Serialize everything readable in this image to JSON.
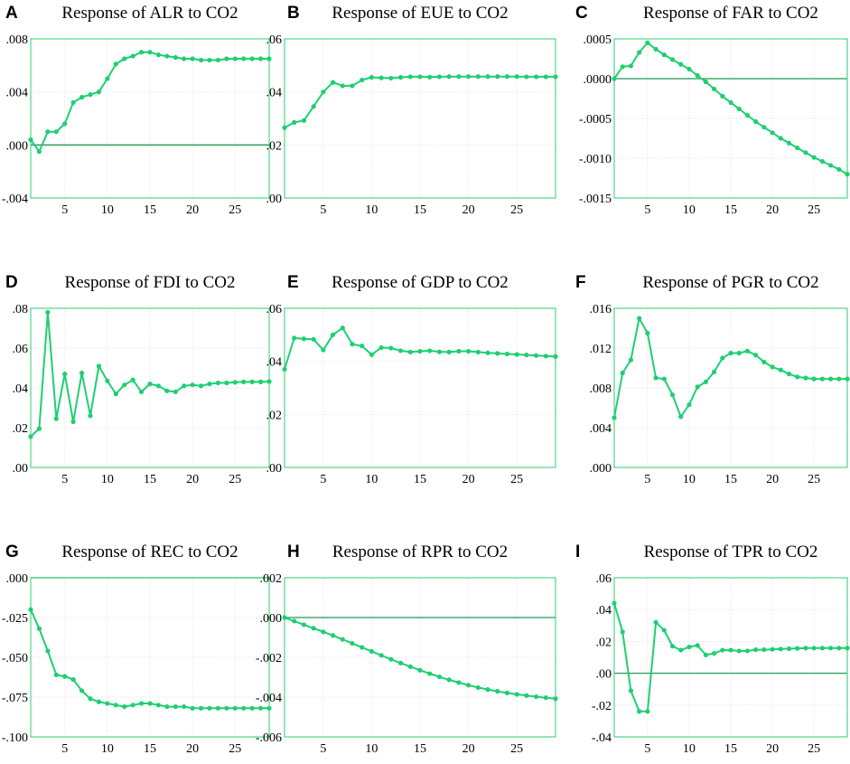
{
  "colors": {
    "series": "#1ecf72",
    "frame": "#2ecc71",
    "zero_line": "#229954",
    "text": "#000000"
  },
  "chart_data": [
    {
      "type": "line",
      "letter": "A",
      "title": "Response of ALR to CO2",
      "xlim": [
        1,
        29
      ],
      "xticks": [
        5,
        10,
        15,
        20,
        25
      ],
      "ylim": [
        -0.004,
        0.008
      ],
      "yticks": [
        0.008,
        0.004,
        0.0,
        -0.004
      ],
      "ytick_labels": [
        ".008",
        ".004",
        ".000",
        "-.004"
      ],
      "zero_line": true,
      "values": [
        0.0004,
        -0.0005,
        0.001,
        0.001,
        0.0016,
        0.0032,
        0.0036,
        0.0038,
        0.004,
        0.005,
        0.0061,
        0.0065,
        0.0067,
        0.007,
        0.007,
        0.0068,
        0.0067,
        0.0066,
        0.0065,
        0.0065,
        0.0064,
        0.0064,
        0.0064,
        0.0065,
        0.0065,
        0.0065,
        0.0065,
        0.0065,
        0.0065
      ]
    },
    {
      "type": "line",
      "letter": "B",
      "title": "Response of EUE to CO2",
      "xlim": [
        1,
        29
      ],
      "xticks": [
        5,
        10,
        15,
        20,
        25
      ],
      "ylim": [
        0.0,
        0.06
      ],
      "yticks": [
        0.06,
        0.04,
        0.02,
        0.0
      ],
      "ytick_labels": [
        ".06",
        ".04",
        ".02",
        ".00"
      ],
      "zero_line": false,
      "values": [
        0.0265,
        0.0285,
        0.0292,
        0.0345,
        0.04,
        0.0436,
        0.0423,
        0.0423,
        0.0445,
        0.0455,
        0.0453,
        0.0452,
        0.0455,
        0.0457,
        0.0457,
        0.0456,
        0.0457,
        0.0458,
        0.0458,
        0.0458,
        0.0458,
        0.0458,
        0.0458,
        0.0458,
        0.0458,
        0.0457,
        0.0457,
        0.0457,
        0.0457
      ]
    },
    {
      "type": "line",
      "letter": "C",
      "title": "Response of FAR to CO2",
      "xlim": [
        1,
        29
      ],
      "xticks": [
        5,
        10,
        15,
        20,
        25
      ],
      "ylim": [
        -0.0015,
        0.0005
      ],
      "yticks": [
        0.0005,
        0.0,
        -0.0005,
        -0.001,
        -0.0015
      ],
      "ytick_labels": [
        ".0005",
        ".0000",
        "-.0005",
        "-.0010",
        "-.0015"
      ],
      "zero_line": true,
      "values": [
        0.0,
        0.00015,
        0.00016,
        0.00033,
        0.00045,
        0.00037,
        0.0003,
        0.00024,
        0.00018,
        0.00012,
        4e-05,
        -4e-05,
        -0.00013,
        -0.00022,
        -0.0003,
        -0.00038,
        -0.00046,
        -0.00054,
        -0.00061,
        -0.00068,
        -0.00075,
        -0.00081,
        -0.00087,
        -0.00093,
        -0.00099,
        -0.00104,
        -0.00109,
        -0.00114,
        -0.0012
      ]
    },
    {
      "type": "line",
      "letter": "D",
      "title": "Response of FDI to CO2",
      "xlim": [
        1,
        29
      ],
      "xticks": [
        5,
        10,
        15,
        20,
        25
      ],
      "ylim": [
        0.0,
        0.08
      ],
      "yticks": [
        0.08,
        0.06,
        0.04,
        0.02,
        0.0
      ],
      "ytick_labels": [
        ".08",
        ".06",
        ".04",
        ".02",
        ".00"
      ],
      "zero_line": false,
      "values": [
        0.0155,
        0.0195,
        0.078,
        0.0245,
        0.047,
        0.023,
        0.0475,
        0.026,
        0.051,
        0.0435,
        0.037,
        0.0415,
        0.044,
        0.038,
        0.042,
        0.041,
        0.0385,
        0.038,
        0.041,
        0.0415,
        0.041,
        0.042,
        0.0425,
        0.0425,
        0.0428,
        0.043,
        0.043,
        0.043,
        0.0432
      ]
    },
    {
      "type": "line",
      "letter": "E",
      "title": "Response of GDP to CO2",
      "xlim": [
        1,
        29
      ],
      "xticks": [
        5,
        10,
        15,
        20,
        25
      ],
      "ylim": [
        0.0,
        0.06
      ],
      "yticks": [
        0.06,
        0.04,
        0.02,
        0.0
      ],
      "ytick_labels": [
        ".06",
        ".04",
        ".02",
        ".00"
      ],
      "zero_line": false,
      "values": [
        0.037,
        0.0488,
        0.0485,
        0.0483,
        0.0443,
        0.05,
        0.0526,
        0.0465,
        0.0458,
        0.0425,
        0.0452,
        0.045,
        0.044,
        0.0435,
        0.0438,
        0.044,
        0.0436,
        0.0435,
        0.0438,
        0.0438,
        0.0435,
        0.0432,
        0.043,
        0.0428,
        0.0426,
        0.0424,
        0.0422,
        0.042,
        0.0418
      ]
    },
    {
      "type": "line",
      "letter": "F",
      "title": "Response of PGR to CO2",
      "xlim": [
        1,
        29
      ],
      "xticks": [
        5,
        10,
        15,
        20,
        25
      ],
      "ylim": [
        0.0,
        0.016
      ],
      "yticks": [
        0.016,
        0.012,
        0.008,
        0.004,
        0.0
      ],
      "ytick_labels": [
        ".016",
        ".012",
        ".008",
        ".004",
        ".000"
      ],
      "zero_line": false,
      "values": [
        0.005,
        0.0095,
        0.0108,
        0.015,
        0.0135,
        0.009,
        0.0089,
        0.0073,
        0.0051,
        0.0063,
        0.0081,
        0.0086,
        0.0096,
        0.011,
        0.0115,
        0.0115,
        0.0117,
        0.0113,
        0.0106,
        0.0101,
        0.0098,
        0.0094,
        0.0091,
        0.009,
        0.0089,
        0.0089,
        0.0089,
        0.0089,
        0.0089
      ]
    },
    {
      "type": "line",
      "letter": "G",
      "title": "Response of REC to CO2",
      "xlim": [
        1,
        29
      ],
      "xticks": [
        5,
        10,
        15,
        20,
        25
      ],
      "ylim": [
        -0.1,
        0.0
      ],
      "yticks": [
        0.0,
        -0.025,
        -0.05,
        -0.075,
        -0.1
      ],
      "ytick_labels": [
        ".000",
        "-.025",
        "-.050",
        "-.075",
        "-.100"
      ],
      "zero_line": true,
      "values": [
        -0.02,
        -0.032,
        -0.046,
        -0.061,
        -0.062,
        -0.064,
        -0.071,
        -0.076,
        -0.078,
        -0.079,
        -0.08,
        -0.081,
        -0.08,
        -0.079,
        -0.079,
        -0.08,
        -0.081,
        -0.081,
        -0.081,
        -0.082,
        -0.082,
        -0.082,
        -0.082,
        -0.082,
        -0.082,
        -0.082,
        -0.082,
        -0.082,
        -0.082
      ]
    },
    {
      "type": "line",
      "letter": "H",
      "title": "Response of RPR to CO2",
      "xlim": [
        1,
        29
      ],
      "xticks": [
        5,
        10,
        15,
        20,
        25
      ],
      "ylim": [
        -0.006,
        0.002
      ],
      "yticks": [
        0.002,
        0.0,
        -0.002,
        -0.004,
        -0.006
      ],
      "ytick_labels": [
        ".002",
        ".000",
        "-.002",
        "-.004",
        "-.006"
      ],
      "zero_line": true,
      "values": [
        0.0,
        -0.00018,
        -0.00036,
        -0.00054,
        -0.00072,
        -0.0009,
        -0.0011,
        -0.0013,
        -0.0015,
        -0.0017,
        -0.0019,
        -0.0021,
        -0.00229,
        -0.00247,
        -0.00265,
        -0.00282,
        -0.00298,
        -0.00313,
        -0.00327,
        -0.0034,
        -0.00352,
        -0.00362,
        -0.00371,
        -0.00379,
        -0.00386,
        -0.00392,
        -0.00398,
        -0.00403,
        -0.00408
      ]
    },
    {
      "type": "line",
      "letter": "I",
      "title": "Response of TPR to CO2",
      "xlim": [
        1,
        29
      ],
      "xticks": [
        5,
        10,
        15,
        20,
        25
      ],
      "ylim": [
        -0.04,
        0.06
      ],
      "yticks": [
        0.06,
        0.04,
        0.02,
        0.0,
        -0.02,
        -0.04
      ],
      "ytick_labels": [
        ".06",
        ".04",
        ".02",
        ".00",
        "-.02",
        "-.04"
      ],
      "zero_line": true,
      "values": [
        0.044,
        0.026,
        -0.011,
        -0.024,
        -0.024,
        0.032,
        0.027,
        0.017,
        0.0145,
        0.0165,
        0.0175,
        0.0115,
        0.0125,
        0.0145,
        0.0145,
        0.014,
        0.014,
        0.0148,
        0.0148,
        0.015,
        0.0152,
        0.0154,
        0.0156,
        0.0158,
        0.0158,
        0.0158,
        0.0158,
        0.0158,
        0.0158
      ]
    }
  ]
}
